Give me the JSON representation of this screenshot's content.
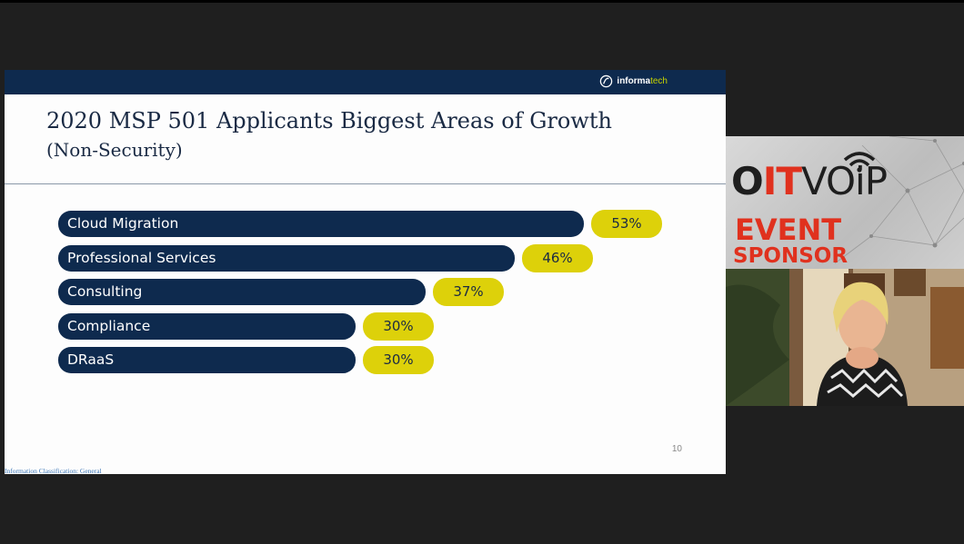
{
  "slide": {
    "title": "2020 MSP 501 Applicants Biggest Areas of Growth",
    "subtitle": "(Non-Security)",
    "logo": {
      "brand": "informa",
      "accent": "tech"
    },
    "page_number": "10",
    "classification": "Information Classification: General"
  },
  "chart_data": {
    "type": "bar",
    "orientation": "horizontal",
    "title": "2020 MSP 501 Applicants Biggest Areas of Growth (Non-Security)",
    "categories": [
      "Cloud Migration",
      "Professional Services",
      "Consulting",
      "Compliance",
      "DRaaS"
    ],
    "values": [
      53,
      46,
      37,
      30,
      30
    ],
    "value_labels": [
      "53%",
      "46%",
      "37%",
      "30%",
      "30%"
    ],
    "unit": "%",
    "bar_color": "#0e2a4e",
    "label_color": "#ddd10a"
  },
  "sponsor": {
    "brand_o": "O",
    "brand_it": "IT",
    "brand_voip": "VOiP",
    "line1": "EVENT",
    "line2": "SPONSOR"
  },
  "colors": {
    "navy": "#0e2a4e",
    "yellow": "#ddd10a",
    "red": "#e0311e"
  }
}
